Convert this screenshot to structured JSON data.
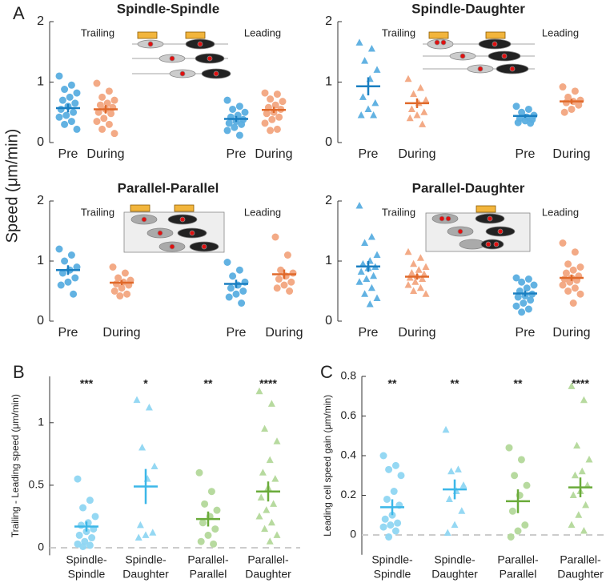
{
  "panel_labels": [
    "A",
    "B",
    "C"
  ],
  "shared_ylabel": "Speed (μm/min)",
  "chart_data": [
    {
      "type": "strip",
      "title": "Spindle-Spindle",
      "annotations": [
        "Trailing",
        "Leading"
      ],
      "categories": [
        "Pre",
        "During",
        "Pre",
        "During"
      ],
      "ylim": [
        0,
        2
      ],
      "yticks": [
        0,
        1,
        2
      ],
      "series": [
        {
          "color": "#5aaee0",
          "mean_color": "#1a7fc1",
          "marker": "circle",
          "values": [
            1.1,
            0.95,
            0.88,
            0.82,
            0.75,
            0.7,
            0.65,
            0.6,
            0.55,
            0.5,
            0.45,
            0.42,
            0.35,
            0.3,
            0.22
          ],
          "mean": 0.57,
          "error": 0.07
        },
        {
          "color": "#f2a57f",
          "mean_color": "#e0692a",
          "marker": "circle",
          "values": [
            0.98,
            0.85,
            0.75,
            0.7,
            0.65,
            0.62,
            0.58,
            0.55,
            0.5,
            0.48,
            0.4,
            0.35,
            0.3,
            0.22,
            0.15
          ],
          "mean": 0.55,
          "error": 0.07
        },
        {
          "color": "#5aaee0",
          "mean_color": "#1a7fc1",
          "marker": "circle",
          "values": [
            0.7,
            0.6,
            0.55,
            0.5,
            0.45,
            0.42,
            0.38,
            0.35,
            0.32,
            0.3,
            0.25,
            0.2,
            0.12
          ],
          "mean": 0.39,
          "error": 0.05
        },
        {
          "color": "#f2a57f",
          "mean_color": "#e0692a",
          "marker": "circle",
          "values": [
            0.82,
            0.8,
            0.72,
            0.68,
            0.62,
            0.58,
            0.55,
            0.5,
            0.48,
            0.42,
            0.38,
            0.32,
            0.22,
            0.2
          ],
          "mean": 0.54,
          "error": 0.05
        }
      ]
    },
    {
      "type": "strip",
      "title": "Spindle-Daughter",
      "annotations": [
        "Trailing",
        "Leading"
      ],
      "categories": [
        "Pre",
        "During",
        "Pre",
        "During"
      ],
      "ylim": [
        0,
        2
      ],
      "yticks": [
        0,
        1,
        2
      ],
      "series": [
        {
          "color": "#5aaee0",
          "mean_color": "#1a7fc1",
          "marker": "triangle",
          "values": [
            1.65,
            1.55,
            1.35,
            1.2,
            1.05,
            0.75,
            0.65,
            0.55,
            0.45,
            0.45
          ],
          "mean": 0.93,
          "error": 0.15
        },
        {
          "color": "#f2a57f",
          "mean_color": "#e0692a",
          "marker": "triangle",
          "values": [
            1.05,
            0.9,
            0.8,
            0.7,
            0.65,
            0.55,
            0.5,
            0.45,
            0.4,
            0.3
          ],
          "mean": 0.65,
          "error": 0.08
        },
        {
          "color": "#5aaee0",
          "mean_color": "#1a7fc1",
          "marker": "circle",
          "values": [
            0.6,
            0.55,
            0.5,
            0.45,
            0.42,
            0.4,
            0.38,
            0.36,
            0.33,
            0.32
          ],
          "mean": 0.44,
          "error": 0.03
        },
        {
          "color": "#f2a57f",
          "mean_color": "#e0692a",
          "marker": "circle",
          "values": [
            0.92,
            0.85,
            0.75,
            0.7,
            0.68,
            0.66,
            0.62,
            0.55,
            0.5
          ],
          "mean": 0.68,
          "error": 0.04
        }
      ]
    },
    {
      "type": "strip",
      "title": "Parallel-Parallel",
      "annotations": [
        "Trailing",
        "Leading"
      ],
      "categories": [
        "Pre",
        "During",
        "Pre",
        "During"
      ],
      "ylim": [
        0,
        2
      ],
      "yticks": [
        0,
        1,
        2
      ],
      "series": [
        {
          "color": "#5aaee0",
          "mean_color": "#1a7fc1",
          "marker": "circle",
          "values": [
            1.2,
            1.1,
            1.0,
            0.9,
            0.85,
            0.8,
            0.72,
            0.65,
            0.6,
            0.45
          ],
          "mean": 0.85,
          "error": 0.08
        },
        {
          "color": "#f2a57f",
          "mean_color": "#e0692a",
          "marker": "circle",
          "values": [
            0.9,
            0.8,
            0.72,
            0.68,
            0.65,
            0.62,
            0.6,
            0.55,
            0.5,
            0.45,
            0.42
          ],
          "mean": 0.64,
          "error": 0.04
        },
        {
          "color": "#5aaee0",
          "mean_color": "#1a7fc1",
          "marker": "circle",
          "values": [
            0.98,
            0.85,
            0.75,
            0.65,
            0.6,
            0.55,
            0.5,
            0.45,
            0.4,
            0.3
          ],
          "mean": 0.62,
          "error": 0.07
        },
        {
          "color": "#f2a57f",
          "mean_color": "#e0692a",
          "marker": "circle",
          "values": [
            1.4,
            1.1,
            0.85,
            0.8,
            0.75,
            0.7,
            0.65,
            0.6,
            0.55,
            0.5
          ],
          "mean": 0.78,
          "error": 0.08
        }
      ]
    },
    {
      "type": "strip",
      "title": "Parallel-Daughter",
      "annotations": [
        "Trailing",
        "Leading"
      ],
      "categories": [
        "Pre",
        "During",
        "Pre",
        "During"
      ],
      "ylim": [
        0,
        2
      ],
      "yticks": [
        0,
        1,
        2
      ],
      "series": [
        {
          "color": "#5aaee0",
          "mean_color": "#1a7fc1",
          "marker": "triangle",
          "values": [
            1.92,
            1.4,
            1.3,
            1.1,
            1.0,
            0.95,
            0.9,
            0.88,
            0.82,
            0.75,
            0.7,
            0.65,
            0.55,
            0.45,
            0.38,
            0.28
          ],
          "mean": 0.91,
          "error": 0.09
        },
        {
          "color": "#f2a57f",
          "mean_color": "#e0692a",
          "marker": "triangle",
          "values": [
            1.15,
            1.05,
            0.95,
            0.9,
            0.85,
            0.8,
            0.78,
            0.75,
            0.72,
            0.7,
            0.65,
            0.6,
            0.55,
            0.5,
            0.45
          ],
          "mean": 0.74,
          "error": 0.05
        },
        {
          "color": "#5aaee0",
          "mean_color": "#1a7fc1",
          "marker": "circle",
          "values": [
            0.72,
            0.7,
            0.65,
            0.6,
            0.55,
            0.5,
            0.45,
            0.42,
            0.4,
            0.35,
            0.3,
            0.25,
            0.2,
            0.15
          ],
          "mean": 0.46,
          "error": 0.05
        },
        {
          "color": "#f2a57f",
          "mean_color": "#e0692a",
          "marker": "circle",
          "values": [
            1.3,
            1.15,
            0.95,
            0.9,
            0.85,
            0.8,
            0.75,
            0.72,
            0.7,
            0.68,
            0.65,
            0.6,
            0.55,
            0.5,
            0.45,
            0.3
          ],
          "mean": 0.72,
          "error": 0.05
        }
      ]
    },
    {
      "type": "strip",
      "ylabel": "Trailing - Leading speed (μm/min)",
      "categories": [
        [
          "Spindle-",
          "Spindle"
        ],
        [
          "Spindle-",
          "Daughter"
        ],
        [
          "Parallel-",
          "Parallel"
        ],
        [
          "Parallel-",
          "Daughter"
        ]
      ],
      "ylim": [
        -0.06,
        1.37
      ],
      "yticks": [
        0,
        0.5,
        1
      ],
      "zero_line": true,
      "significance": [
        "***",
        "*",
        "**",
        "****"
      ],
      "series": [
        {
          "color": "#8fd6f2",
          "mean_color": "#3cb7e8",
          "marker": "circle",
          "values": [
            0.55,
            0.38,
            0.32,
            0.25,
            0.2,
            0.18,
            0.15,
            0.13,
            0.1,
            0.08,
            0.05,
            0.03,
            0.02,
            0.01
          ],
          "mean": 0.17,
          "error": 0.04
        },
        {
          "color": "#8fd6f2",
          "mean_color": "#3cb7e8",
          "marker": "triangle",
          "values": [
            1.18,
            1.12,
            0.8,
            0.65,
            0.55,
            0.18,
            0.12,
            0.1,
            0.08
          ],
          "mean": 0.49,
          "error": 0.14
        },
        {
          "color": "#b3d89a",
          "mean_color": "#6aab3a",
          "marker": "circle",
          "values": [
            0.6,
            0.45,
            0.35,
            0.3,
            0.25,
            0.2,
            0.15,
            0.1,
            0.05,
            0.03
          ],
          "mean": 0.23,
          "error": 0.06
        },
        {
          "color": "#b3d89a",
          "mean_color": "#6aab3a",
          "marker": "triangle",
          "values": [
            1.25,
            1.15,
            0.95,
            0.85,
            0.7,
            0.6,
            0.55,
            0.48,
            0.4,
            0.35,
            0.3,
            0.25,
            0.2,
            0.15,
            0.1,
            0.05
          ],
          "mean": 0.45,
          "error": 0.08
        }
      ]
    },
    {
      "type": "strip",
      "ylabel": "Leading cell speed gain (μm/min)",
      "categories": [
        [
          "Spindle-",
          "Spindle"
        ],
        [
          "Spindle-",
          "Daughter"
        ],
        [
          "Parallel-",
          "Parallel"
        ],
        [
          "Parallel-",
          "Daughter"
        ]
      ],
      "ylim": [
        -0.1,
        0.8
      ],
      "yticks": [
        0,
        0.2,
        0.4,
        0.6,
        0.8
      ],
      "zero_line": true,
      "significance": [
        "**",
        "**",
        "**",
        "****"
      ],
      "series": [
        {
          "color": "#8fd6f2",
          "mean_color": "#3cb7e8",
          "marker": "circle",
          "values": [
            0.4,
            0.35,
            0.33,
            0.3,
            0.22,
            0.18,
            0.15,
            0.1,
            0.08,
            0.06,
            0.05,
            0.04,
            0.02,
            -0.01
          ],
          "mean": 0.14,
          "error": 0.04
        },
        {
          "color": "#8fd6f2",
          "mean_color": "#3cb7e8",
          "marker": "triangle",
          "values": [
            0.53,
            0.33,
            0.32,
            0.25,
            0.22,
            0.18,
            0.12,
            0.05,
            0.01
          ],
          "mean": 0.23,
          "error": 0.05
        },
        {
          "color": "#b3d89a",
          "mean_color": "#6aab3a",
          "marker": "circle",
          "values": [
            0.44,
            0.38,
            0.3,
            0.25,
            0.2,
            0.12,
            0.05,
            0.02,
            -0.01
          ],
          "mean": 0.17,
          "error": 0.06
        },
        {
          "color": "#b3d89a",
          "mean_color": "#6aab3a",
          "marker": "triangle",
          "values": [
            0.75,
            0.68,
            0.45,
            0.38,
            0.32,
            0.3,
            0.25,
            0.22,
            0.2,
            0.15,
            0.1,
            0.05,
            0.02
          ],
          "mean": 0.24,
          "error": 0.05
        }
      ]
    }
  ]
}
